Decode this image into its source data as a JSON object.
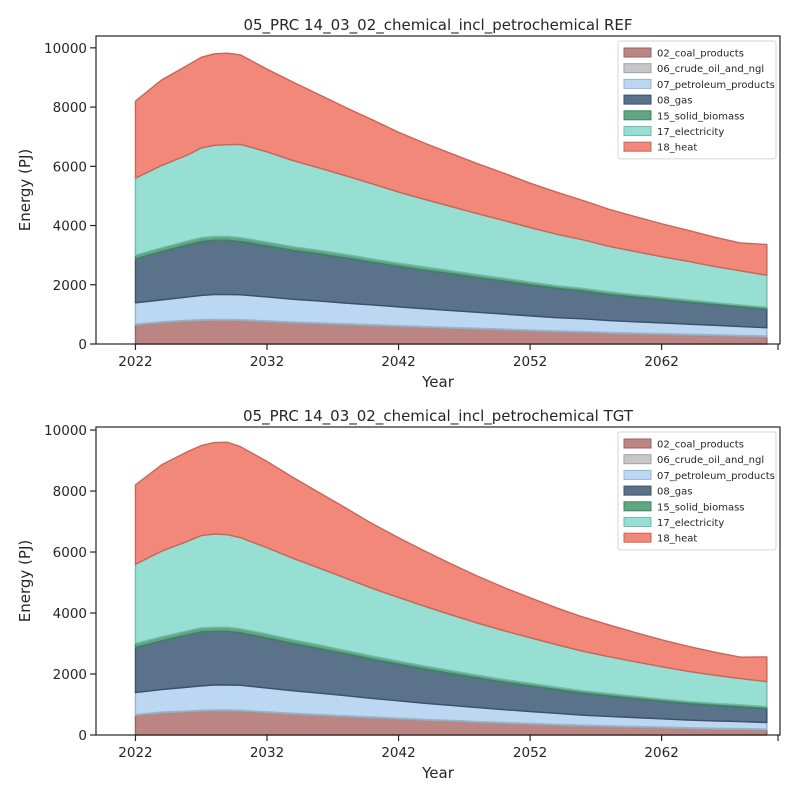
{
  "chart_data": [
    {
      "type": "area",
      "stacked": true,
      "title": "05_PRC 14_03_02_chemical_incl_petrochemical REF",
      "xlabel": "Year",
      "ylabel": "Energy (PJ)",
      "xlim": [
        2019,
        2071
      ],
      "ylim": [
        0,
        10400
      ],
      "xticks": [
        2022,
        2032,
        2042,
        2052,
        2062,
        2072
      ],
      "xtick_labels": [
        "2022",
        "2032",
        "2042",
        "2052",
        "2062",
        ""
      ],
      "yticks": [
        0,
        2000,
        4000,
        6000,
        8000,
        10000
      ],
      "legend_position": "top-right",
      "grid": false,
      "x": [
        2022,
        2024,
        2026,
        2027,
        2028,
        2029,
        2030,
        2032,
        2034,
        2036,
        2038,
        2040,
        2042,
        2044,
        2046,
        2048,
        2050,
        2052,
        2054,
        2056,
        2058,
        2060,
        2062,
        2064,
        2066,
        2068,
        2070
      ],
      "series": [
        {
          "name": "02_coal_products",
          "color": "#b27473",
          "values": [
            640,
            720,
            770,
            790,
            800,
            800,
            790,
            750,
            710,
            680,
            650,
            620,
            590,
            560,
            530,
            500,
            470,
            440,
            410,
            390,
            360,
            340,
            320,
            300,
            280,
            260,
            240
          ]
        },
        {
          "name": "06_crude_oil_and_ngl",
          "color": "#bfbfbf",
          "values": [
            30,
            30,
            30,
            30,
            30,
            30,
            30,
            30,
            30,
            30,
            30,
            30,
            30,
            30,
            30,
            30,
            30,
            30,
            30,
            30,
            30,
            30,
            30,
            30,
            30,
            30,
            30
          ]
        },
        {
          "name": "07_petroleum_products",
          "color": "#b3d2f0",
          "values": [
            720,
            740,
            790,
            820,
            840,
            840,
            840,
            810,
            770,
            740,
            700,
            670,
            630,
            600,
            570,
            540,
            510,
            480,
            450,
            430,
            400,
            380,
            360,
            340,
            320,
            300,
            280
          ]
        },
        {
          "name": "08_gas",
          "color": "#43607a",
          "values": [
            1480,
            1630,
            1760,
            1820,
            1830,
            1830,
            1800,
            1720,
            1650,
            1590,
            1520,
            1440,
            1370,
            1300,
            1240,
            1170,
            1110,
            1050,
            990,
            940,
            880,
            830,
            790,
            740,
            700,
            660,
            620
          ]
        },
        {
          "name": "15_solid_biomass",
          "color": "#4a9a72",
          "values": [
            130,
            130,
            130,
            130,
            130,
            130,
            130,
            130,
            120,
            120,
            120,
            110,
            110,
            110,
            100,
            100,
            100,
            90,
            90,
            90,
            90,
            80,
            80,
            80,
            70,
            70,
            70
          ]
        },
        {
          "name": "17_electricity",
          "color": "#87dbcc",
          "values": [
            2600,
            2780,
            2910,
            3030,
            3080,
            3100,
            3150,
            3050,
            2910,
            2780,
            2660,
            2540,
            2400,
            2280,
            2170,
            2060,
            1950,
            1840,
            1740,
            1640,
            1540,
            1460,
            1370,
            1300,
            1220,
            1150,
            1080
          ]
        },
        {
          "name": "18_heat",
          "color": "#ef7766",
          "values": [
            2600,
            2890,
            3030,
            3060,
            3090,
            3090,
            3020,
            2790,
            2650,
            2470,
            2300,
            2160,
            2020,
            1900,
            1790,
            1690,
            1600,
            1500,
            1420,
            1330,
            1250,
            1180,
            1110,
            1050,
            990,
            940,
            1040
          ]
        }
      ]
    },
    {
      "type": "area",
      "stacked": true,
      "title": "05_PRC 14_03_02_chemical_incl_petrochemical TGT",
      "xlabel": "Year",
      "ylabel": "Energy (PJ)",
      "xlim": [
        2019,
        2071
      ],
      "ylim": [
        0,
        10100
      ],
      "xticks": [
        2022,
        2032,
        2042,
        2052,
        2062,
        2072
      ],
      "xtick_labels": [
        "2022",
        "2032",
        "2042",
        "2052",
        "2062",
        ""
      ],
      "yticks": [
        0,
        2000,
        4000,
        6000,
        8000,
        10000
      ],
      "legend_position": "top-right",
      "grid": false,
      "x": [
        2022,
        2024,
        2026,
        2027,
        2028,
        2029,
        2030,
        2032,
        2034,
        2036,
        2038,
        2040,
        2042,
        2044,
        2046,
        2048,
        2050,
        2052,
        2054,
        2056,
        2058,
        2060,
        2062,
        2064,
        2066,
        2068,
        2070
      ],
      "series": [
        {
          "name": "02_coal_products",
          "color": "#b27473",
          "values": [
            640,
            720,
            760,
            780,
            790,
            790,
            780,
            730,
            680,
            640,
            600,
            560,
            520,
            480,
            450,
            410,
            380,
            350,
            320,
            290,
            270,
            250,
            230,
            210,
            190,
            180,
            160
          ]
        },
        {
          "name": "06_crude_oil_and_ngl",
          "color": "#bfbfbf",
          "values": [
            30,
            30,
            30,
            30,
            30,
            30,
            30,
            30,
            30,
            30,
            30,
            30,
            30,
            30,
            30,
            30,
            30,
            30,
            30,
            30,
            30,
            30,
            30,
            30,
            30,
            30,
            30
          ]
        },
        {
          "name": "07_petroleum_products",
          "color": "#b3d2f0",
          "values": [
            720,
            740,
            780,
            800,
            820,
            820,
            820,
            780,
            740,
            700,
            660,
            610,
            570,
            530,
            490,
            460,
            420,
            390,
            360,
            330,
            310,
            290,
            270,
            250,
            240,
            230,
            220
          ]
        },
        {
          "name": "08_gas",
          "color": "#43607a",
          "values": [
            1480,
            1600,
            1720,
            1770,
            1760,
            1760,
            1720,
            1640,
            1550,
            1460,
            1370,
            1280,
            1200,
            1120,
            1040,
            970,
            900,
            840,
            780,
            720,
            670,
            620,
            580,
            540,
            510,
            480,
            450
          ]
        },
        {
          "name": "15_solid_biomass",
          "color": "#4a9a72",
          "values": [
            130,
            130,
            130,
            130,
            130,
            130,
            130,
            130,
            120,
            120,
            110,
            110,
            100,
            100,
            100,
            90,
            90,
            90,
            80,
            80,
            80,
            80,
            70,
            70,
            70,
            70,
            70
          ]
        },
        {
          "name": "17_electricity",
          "color": "#87dbcc",
          "values": [
            2600,
            2810,
            2940,
            3030,
            3060,
            3040,
            2990,
            2830,
            2670,
            2520,
            2370,
            2220,
            2090,
            1960,
            1830,
            1710,
            1600,
            1490,
            1390,
            1300,
            1210,
            1130,
            1060,
            990,
            920,
            860,
            820
          ]
        },
        {
          "name": "18_heat",
          "color": "#ef7766",
          "values": [
            2600,
            2830,
            2940,
            2950,
            3000,
            3030,
            2980,
            2830,
            2650,
            2470,
            2300,
            2120,
            1960,
            1810,
            1670,
            1540,
            1420,
            1310,
            1210,
            1120,
            1040,
            960,
            880,
            820,
            760,
            700,
            810
          ]
        }
      ]
    }
  ]
}
